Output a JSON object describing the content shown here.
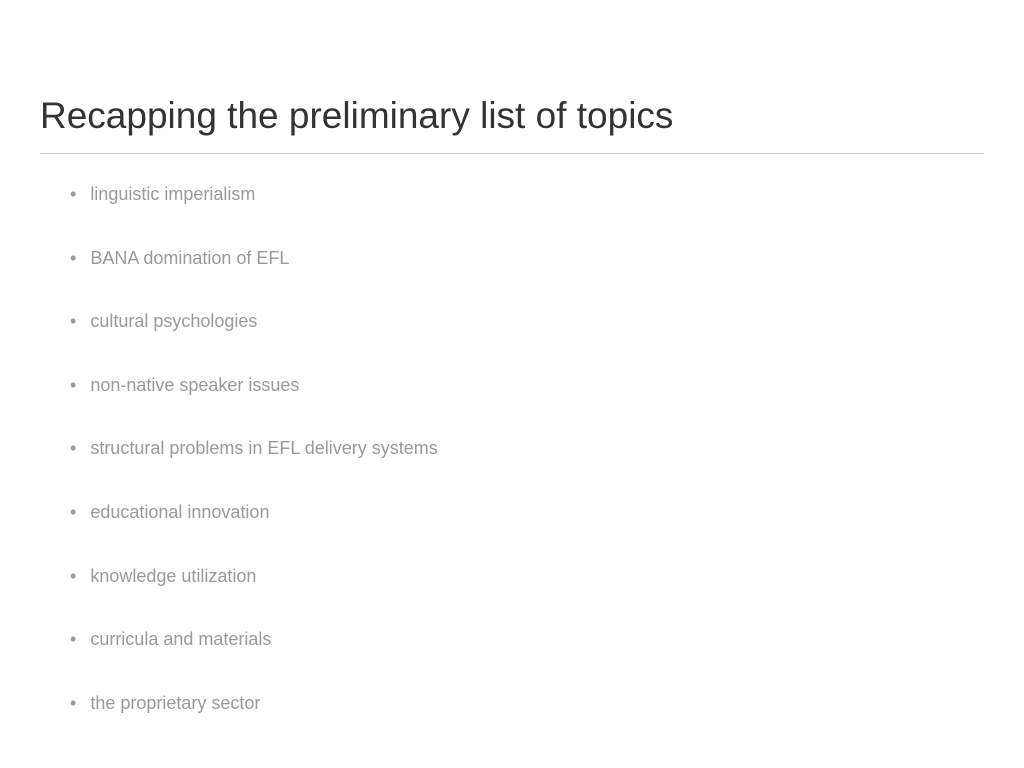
{
  "slide": {
    "title": "Recapping the preliminary list of topics",
    "bullets": [
      "linguistic imperialism",
      "BANA domination of EFL",
      "cultural psychologies",
      "non-native speaker issues",
      "structural problems in EFL delivery systems",
      "educational innovation",
      "knowledge utilization",
      "curricula and materials",
      "the proprietary sector"
    ],
    "colors": {
      "background": "#ffffff",
      "title": "#333333",
      "bullet_text": "#999999",
      "bullet_marker": "#999999",
      "divider": "#cccccc"
    },
    "typography": {
      "title_fontsize": 37,
      "bullet_fontsize": 18,
      "font_family": "Arial"
    },
    "layout": {
      "bullet_marker": "•",
      "bullet_spacing": 42,
      "padding_left": 30
    }
  }
}
